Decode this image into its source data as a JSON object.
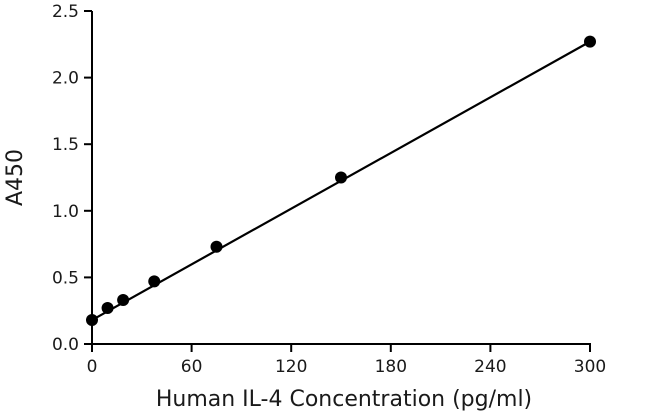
{
  "chart_data": {
    "type": "scatter",
    "title": "",
    "xlabel": "Human IL-4 Concentration (pg/ml)",
    "ylabel": "A450",
    "xlim": [
      0,
      300
    ],
    "ylim": [
      0,
      2.5
    ],
    "xticks": [
      "0",
      "60",
      "120",
      "180",
      "240",
      "300"
    ],
    "yticks": [
      "0.0",
      "0.5",
      "1.0",
      "1.5",
      "2.0",
      "2.5"
    ],
    "grid": false,
    "legend": "none",
    "series": [
      {
        "points": [
          {
            "x": 0,
            "y": 0.18
          },
          {
            "x": 9.38,
            "y": 0.27
          },
          {
            "x": 18.75,
            "y": 0.33
          },
          {
            "x": 37.5,
            "y": 0.47
          },
          {
            "x": 75,
            "y": 0.73
          },
          {
            "x": 150,
            "y": 1.25
          },
          {
            "x": 300,
            "y": 2.27
          }
        ],
        "fit_line": {
          "x": [
            0,
            300
          ],
          "y": [
            0.18,
            2.27
          ]
        },
        "color": "#000000"
      }
    ]
  }
}
